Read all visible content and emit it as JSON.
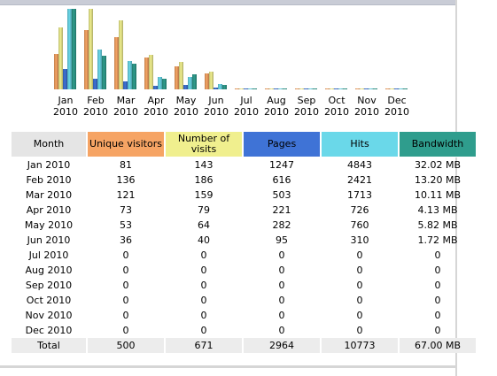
{
  "colors": {
    "unique_visitors": "#f6a464",
    "visits": "#f0ef8e",
    "pages": "#3f73d6",
    "hits": "#6ad8e9",
    "bandwidth": "#2f9d8d",
    "month_header": "#e5e5e5"
  },
  "table": {
    "headers": {
      "month": "Month",
      "unique_visitors": "Unique visitors",
      "visits": "Number of visits",
      "pages": "Pages",
      "hits": "Hits",
      "bandwidth": "Bandwidth"
    },
    "rows": [
      {
        "month": "Jan 2010",
        "unique_visitors": "81",
        "visits": "143",
        "pages": "1247",
        "hits": "4843",
        "bandwidth": "32.02 MB"
      },
      {
        "month": "Feb 2010",
        "unique_visitors": "136",
        "visits": "186",
        "pages": "616",
        "hits": "2421",
        "bandwidth": "13.20 MB"
      },
      {
        "month": "Mar 2010",
        "unique_visitors": "121",
        "visits": "159",
        "pages": "503",
        "hits": "1713",
        "bandwidth": "10.11 MB"
      },
      {
        "month": "Apr 2010",
        "unique_visitors": "73",
        "visits": "79",
        "pages": "221",
        "hits": "726",
        "bandwidth": "4.13 MB"
      },
      {
        "month": "May 2010",
        "unique_visitors": "53",
        "visits": "64",
        "pages": "282",
        "hits": "760",
        "bandwidth": "5.82 MB"
      },
      {
        "month": "Jun 2010",
        "unique_visitors": "36",
        "visits": "40",
        "pages": "95",
        "hits": "310",
        "bandwidth": "1.72 MB"
      },
      {
        "month": "Jul 2010",
        "unique_visitors": "0",
        "visits": "0",
        "pages": "0",
        "hits": "0",
        "bandwidth": "0"
      },
      {
        "month": "Aug 2010",
        "unique_visitors": "0",
        "visits": "0",
        "pages": "0",
        "hits": "0",
        "bandwidth": "0"
      },
      {
        "month": "Sep 2010",
        "unique_visitors": "0",
        "visits": "0",
        "pages": "0",
        "hits": "0",
        "bandwidth": "0"
      },
      {
        "month": "Oct 2010",
        "unique_visitors": "0",
        "visits": "0",
        "pages": "0",
        "hits": "0",
        "bandwidth": "0"
      },
      {
        "month": "Nov 2010",
        "unique_visitors": "0",
        "visits": "0",
        "pages": "0",
        "hits": "0",
        "bandwidth": "0"
      },
      {
        "month": "Dec 2010",
        "unique_visitors": "0",
        "visits": "0",
        "pages": "0",
        "hits": "0",
        "bandwidth": "0"
      }
    ],
    "total": {
      "month": "Total",
      "unique_visitors": "500",
      "visits": "671",
      "pages": "2964",
      "hits": "10773",
      "bandwidth": "67.00 MB"
    }
  },
  "chart_data": {
    "type": "bar",
    "categories": [
      [
        "Jan",
        "2010"
      ],
      [
        "Feb",
        "2010"
      ],
      [
        "Mar",
        "2010"
      ],
      [
        "Apr",
        "2010"
      ],
      [
        "May",
        "2010"
      ],
      [
        "Jun",
        "2010"
      ],
      [
        "Jul",
        "2010"
      ],
      [
        "Aug",
        "2010"
      ],
      [
        "Sep",
        "2010"
      ],
      [
        "Oct",
        "2010"
      ],
      [
        "Nov",
        "2010"
      ],
      [
        "Dec",
        "2010"
      ]
    ],
    "series": [
      {
        "key": "unique_visitors",
        "values": [
          81,
          136,
          121,
          73,
          53,
          36,
          0,
          0,
          0,
          0,
          0,
          0
        ]
      },
      {
        "key": "visits",
        "values": [
          143,
          186,
          159,
          79,
          64,
          40,
          0,
          0,
          0,
          0,
          0,
          0
        ]
      },
      {
        "key": "pages",
        "values": [
          1247,
          616,
          503,
          221,
          282,
          95,
          0,
          0,
          0,
          0,
          0,
          0
        ]
      },
      {
        "key": "hits",
        "values": [
          4843,
          2421,
          1713,
          726,
          760,
          310,
          0,
          0,
          0,
          0,
          0,
          0
        ]
      },
      {
        "key": "bandwidth",
        "values": [
          32.02,
          13.2,
          10.11,
          4.13,
          5.82,
          1.72,
          0,
          0,
          0,
          0,
          0,
          0
        ]
      }
    ],
    "scale_groups": {
      "visitors": [
        "unique_visitors",
        "visits"
      ],
      "traffic": [
        "pages",
        "hits"
      ],
      "bandwidth": [
        "bandwidth"
      ]
    },
    "legend": "none",
    "grid": false
  }
}
